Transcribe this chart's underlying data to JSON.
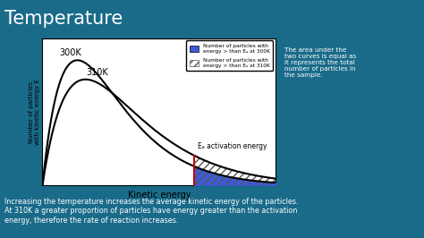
{
  "title": "Temperature",
  "xlabel": "Kinetic energy",
  "ylabel": "Number of particles\nwith kinetic energy E",
  "curve_300K_label": "300K",
  "curve_310K_label": "310K",
  "ea_label": "Eₐ activation energy",
  "legend_blue_label": "Number of particles with\nenergy > than Eₐ at 300K",
  "legend_hatch_label": "Number of particles with\nenergy > than Eₐ at 310K",
  "side_text": "The area under the\ntwo curves is equal as\nit represents the total\nnumber of particles in\nthe sample.",
  "bottom_text": "Increasing the temperature increases the average kinetic energy of the particles.\nAt 310K a greater proportion of particles have energy greater than the activation\nenergy, therefore the rate of reaction increases.",
  "bg_color": "#1a6b8a",
  "plot_bg": "#ffffff",
  "curve_color": "#000000",
  "ea_line_color": "#cc0000",
  "blue_fill_color": "#3b5bdb",
  "hatch_edge_color": "#555555",
  "title_color": "#ffffff",
  "text_color": "#ffffff",
  "kT_300": 1.5,
  "kT_310": 1.85,
  "peak_300": 0.85,
  "peak_310": 0.72,
  "Ea": 6.5,
  "xlim": [
    0,
    10
  ],
  "ylim": [
    0,
    1.0
  ]
}
